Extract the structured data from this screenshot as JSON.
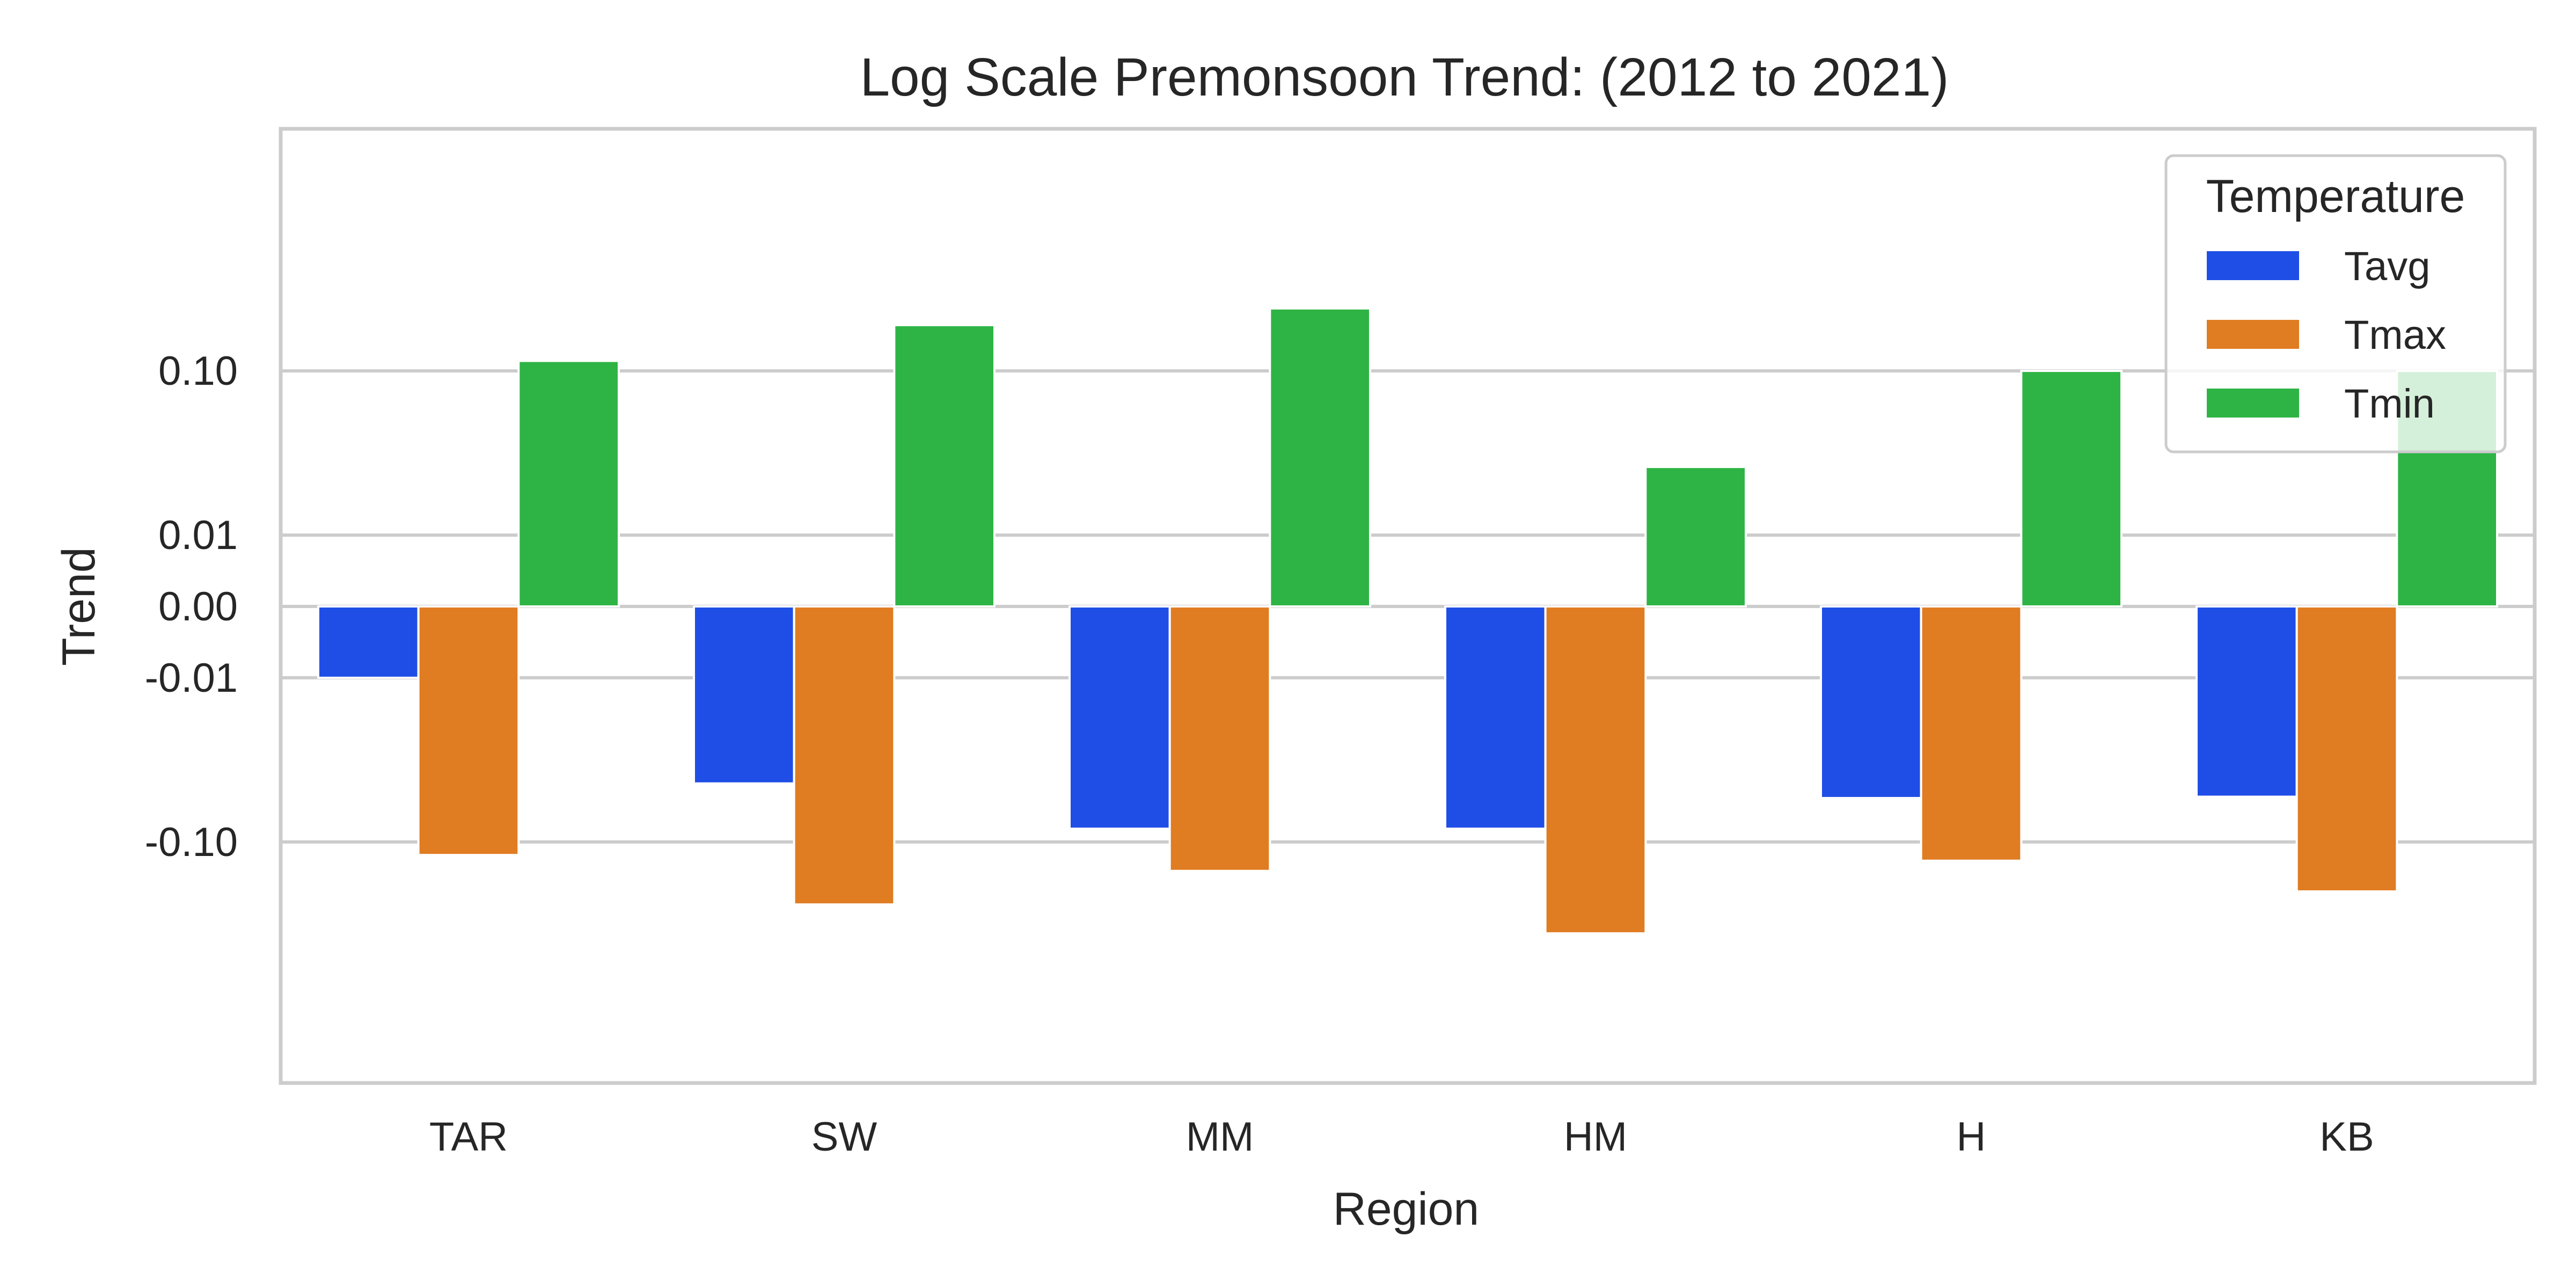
{
  "chart_data": {
    "type": "bar",
    "title": "Log Scale Premonsoon Trend: (2012 to 2021)",
    "xlabel": "Region",
    "ylabel": "Trend",
    "y_scale": "symlog",
    "y_ticks": [
      -0.1,
      -0.01,
      0,
      0.01,
      0.1
    ],
    "y_tick_labels": [
      "-0.10",
      "-0.01",
      "0.00",
      "0.01",
      "0.10"
    ],
    "ylim": [
      -0.5,
      0.8
    ],
    "categories": [
      "TAR",
      "SW",
      "MM",
      "HM",
      "H",
      "KB"
    ],
    "series": [
      {
        "name": "Tavg",
        "color": "#1f4ee6",
        "values": [
          -0.01,
          -0.044,
          -0.083,
          -0.083,
          -0.054,
          -0.053
        ]
      },
      {
        "name": "Tmax",
        "color": "#e07c21",
        "values": [
          -0.12,
          -0.24,
          -0.15,
          -0.36,
          -0.13,
          -0.2
        ]
      },
      {
        "name": "Tmin",
        "color": "#2eb445",
        "values": [
          0.115,
          0.19,
          0.24,
          0.026,
          0.1,
          0.1
        ]
      }
    ],
    "grid": true,
    "legend": {
      "title": "Temperature",
      "position": "upper right"
    }
  }
}
